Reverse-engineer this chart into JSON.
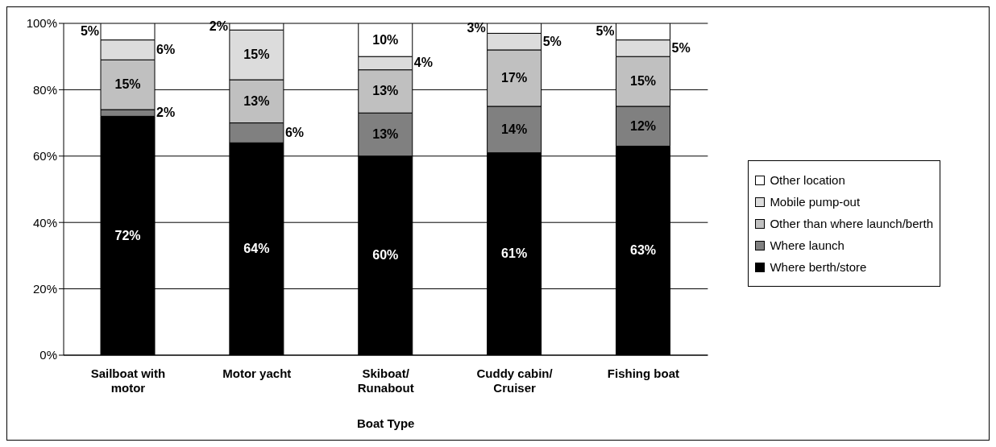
{
  "chart_data": {
    "type": "bar",
    "stacked": true,
    "xlabel": "Boat Type",
    "categories": [
      "Sailboat with motor",
      "Motor yacht",
      "Skiboat/ Runabout",
      "Cuddy cabin/ Cruiser",
      "Fishing boat"
    ],
    "series": [
      {
        "name": "Where berth/store",
        "color": "#000000",
        "values": [
          72,
          64,
          60,
          61,
          63
        ],
        "value_labels": [
          "72%",
          "64%",
          "60%",
          "61%",
          "63%"
        ]
      },
      {
        "name": "Where launch",
        "color": "#808080",
        "values": [
          2,
          6,
          13,
          14,
          12
        ],
        "value_labels": [
          "2%",
          "6%",
          "13%",
          "14%",
          "12%"
        ]
      },
      {
        "name": "Other than where launch/berth",
        "color": "#c0c0c0",
        "values": [
          15,
          13,
          13,
          17,
          15
        ],
        "value_labels": [
          "15%",
          "13%",
          "13%",
          "17%",
          "15%"
        ]
      },
      {
        "name": "Mobile pump-out",
        "color": "#dcdcdc",
        "values": [
          6,
          15,
          4,
          5,
          5
        ],
        "value_labels": [
          "6%",
          "15%",
          "4%",
          "5%",
          "5%"
        ]
      },
      {
        "name": "Other location",
        "color": "#ffffff",
        "values": [
          5,
          2,
          10,
          3,
          5
        ],
        "value_labels": [
          "5%",
          "2%",
          "10%",
          "3%",
          "5%"
        ]
      }
    ],
    "ylim": [
      0,
      100
    ],
    "yticks": [
      {
        "value": 0,
        "label": "0%"
      },
      {
        "value": 20,
        "label": "20%"
      },
      {
        "value": 40,
        "label": "40%"
      },
      {
        "value": 60,
        "label": "60%"
      },
      {
        "value": 80,
        "label": "80%"
      },
      {
        "value": 100,
        "label": "100%"
      }
    ],
    "grid": "y",
    "legend": "right"
  }
}
